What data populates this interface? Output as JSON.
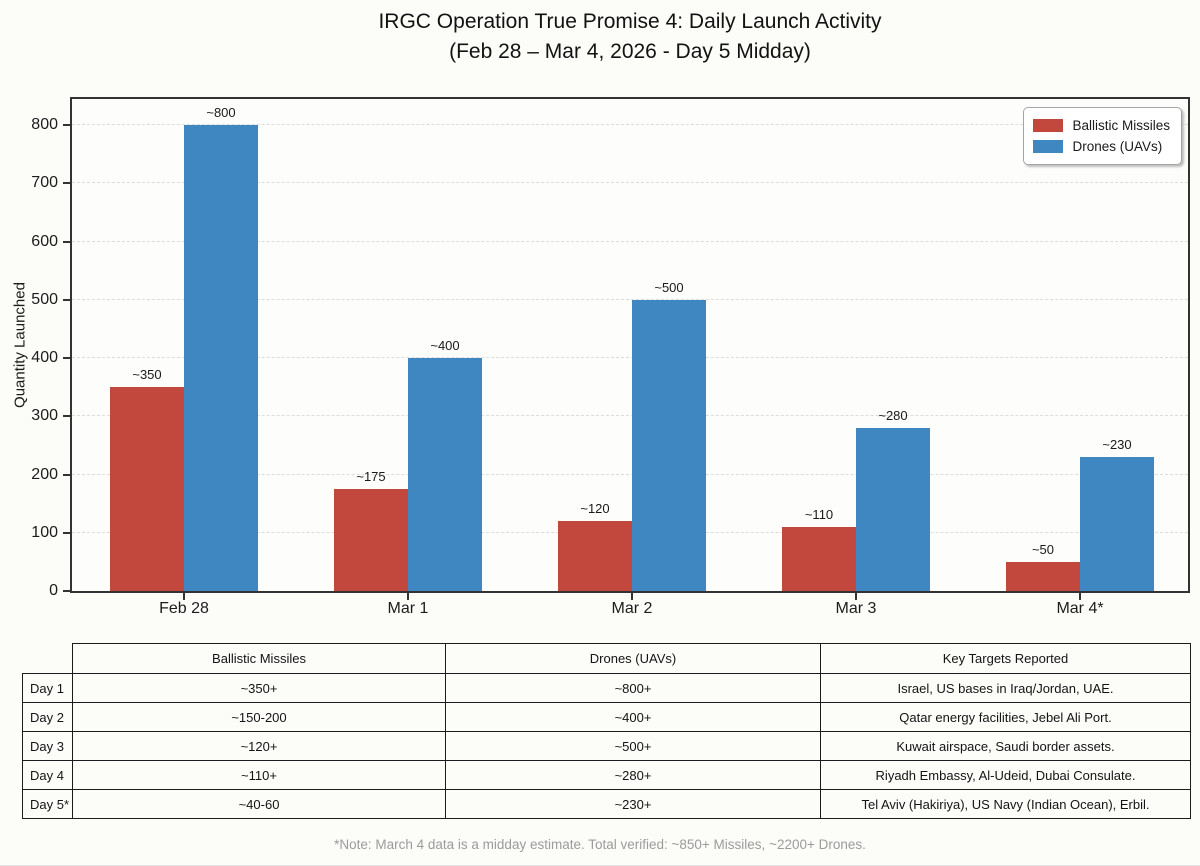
{
  "chart_data": {
    "type": "bar",
    "title": "IRGC Operation True Promise 4: Daily Launch Activity",
    "subtitle": "(Feb 28 – Mar 4, 2026 - Day 5 Midday)",
    "ylabel": "Quantity Launched",
    "xlabel": "",
    "categories": [
      "Feb 28",
      "Mar 1",
      "Mar 2",
      "Mar 3",
      "Mar 4*"
    ],
    "series": [
      {
        "name": "Ballistic Missiles",
        "color": "#c2473d",
        "values": [
          350,
          175,
          120,
          110,
          50
        ],
        "bar_labels": [
          "~350",
          "~175",
          "~120",
          "~110",
          "~50"
        ]
      },
      {
        "name": "Drones (UAVs)",
        "color": "#3f87c1",
        "values": [
          800,
          400,
          500,
          280,
          230
        ],
        "bar_labels": [
          "~800",
          "~400",
          "~500",
          "~280",
          "~230"
        ]
      }
    ],
    "yticks": [
      0,
      100,
      200,
      300,
      400,
      500,
      600,
      700,
      800
    ],
    "ylim": [
      0,
      845
    ],
    "grid": "horizontal-dashed",
    "legend_position": "upper-right"
  },
  "table": {
    "headers": [
      "",
      "Ballistic Missiles",
      "Drones (UAVs)",
      "Key Targets Reported"
    ],
    "rows": [
      [
        "Day 1",
        "~350+",
        "~800+",
        "Israel, US bases in Iraq/Jordan, UAE."
      ],
      [
        "Day 2",
        "~150-200",
        "~400+",
        "Qatar energy facilities, Jebel Ali Port."
      ],
      [
        "Day 3",
        "~120+",
        "~500+",
        "Kuwait airspace, Saudi border assets."
      ],
      [
        "Day 4",
        "~110+",
        "~280+",
        "Riyadh Embassy, Al-Udeid, Dubai Consulate."
      ],
      [
        "Day 5*",
        "~40-60",
        "~230+",
        "Tel Aviv (Hakiriya), US Navy (Indian Ocean), Erbil."
      ]
    ]
  },
  "footnote": "*Note: March 4 data is a midday estimate. Total verified: ~850+ Missiles, ~2200+ Drones."
}
